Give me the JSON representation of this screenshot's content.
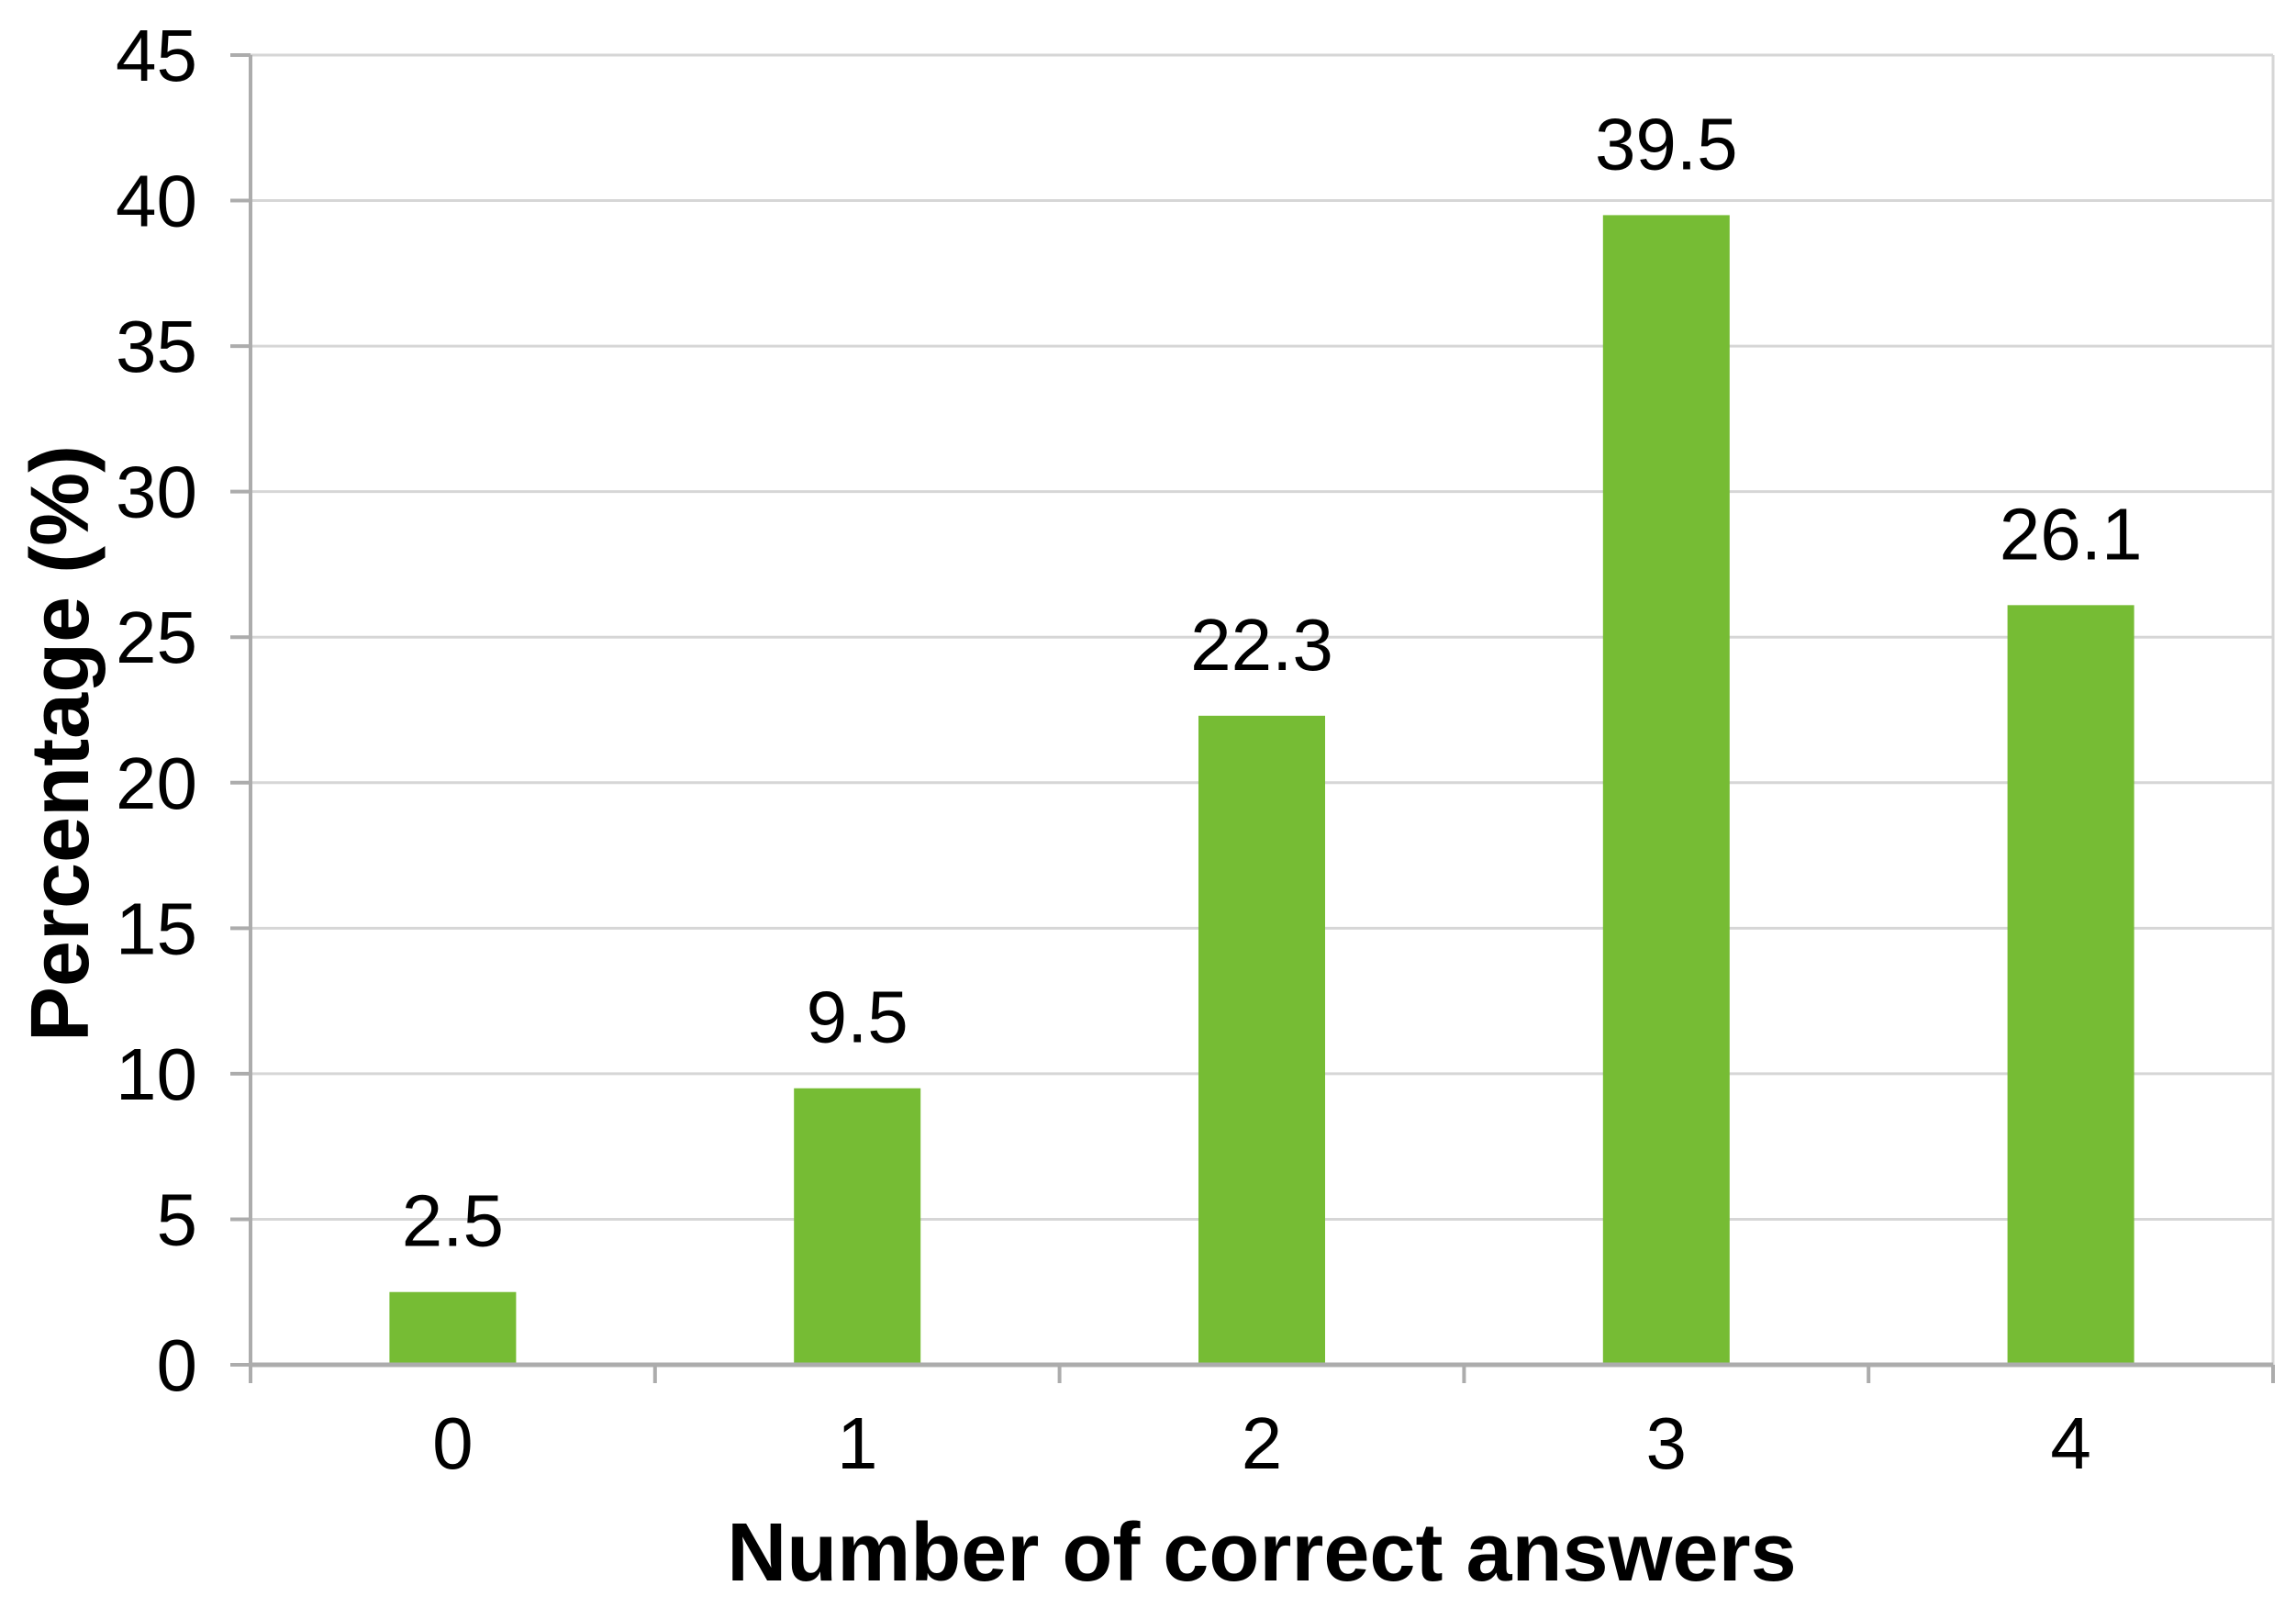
{
  "figure": {
    "background_color": "#FFFFFF"
  },
  "chart_data": {
    "type": "bar",
    "categories": [
      "0",
      "1",
      "2",
      "3",
      "4"
    ],
    "values": [
      2.5,
      9.5,
      22.3,
      39.5,
      26.1
    ],
    "value_labels": [
      "2.5",
      "9.5",
      "22.3",
      "39.5",
      "26.1"
    ],
    "title": "",
    "xlabel": "Number of correct answers",
    "ylabel": "Percentage (%)",
    "ylim": [
      0,
      45
    ],
    "yticks": [
      0,
      5,
      10,
      15,
      20,
      25,
      30,
      35,
      40,
      45
    ],
    "ytick_labels": [
      "0",
      "5",
      "10",
      "15",
      "20",
      "25",
      "30",
      "35",
      "40",
      "45"
    ],
    "grid": true,
    "legend": "none",
    "bar_color": "#76BC34",
    "gridline_color": "#D6D6D6",
    "axis_color": "#ACACAC",
    "text_color": "#000000"
  }
}
